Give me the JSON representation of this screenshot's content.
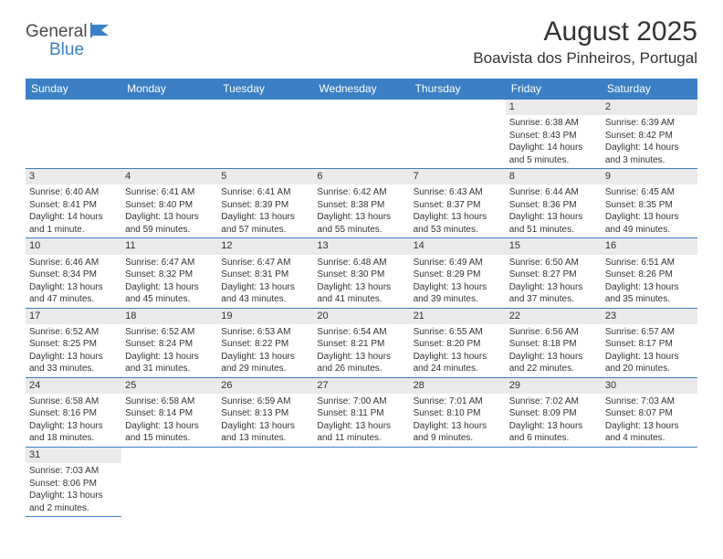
{
  "logo": {
    "part1": "General",
    "part2": "Blue"
  },
  "title": "August 2025",
  "location": "Boavista dos Pinheiros, Portugal",
  "header_bg": "#3b7fc4",
  "header_fg": "#ffffff",
  "daynum_bg": "#eaeaea",
  "border_color": "#3b7fc4",
  "weekdays": [
    "Sunday",
    "Monday",
    "Tuesday",
    "Wednesday",
    "Thursday",
    "Friday",
    "Saturday"
  ],
  "weeks": [
    [
      null,
      null,
      null,
      null,
      null,
      {
        "n": "1",
        "sunrise": "6:38 AM",
        "sunset": "8:43 PM",
        "daylight": "14 hours and 5 minutes."
      },
      {
        "n": "2",
        "sunrise": "6:39 AM",
        "sunset": "8:42 PM",
        "daylight": "14 hours and 3 minutes."
      }
    ],
    [
      {
        "n": "3",
        "sunrise": "6:40 AM",
        "sunset": "8:41 PM",
        "daylight": "14 hours and 1 minute."
      },
      {
        "n": "4",
        "sunrise": "6:41 AM",
        "sunset": "8:40 PM",
        "daylight": "13 hours and 59 minutes."
      },
      {
        "n": "5",
        "sunrise": "6:41 AM",
        "sunset": "8:39 PM",
        "daylight": "13 hours and 57 minutes."
      },
      {
        "n": "6",
        "sunrise": "6:42 AM",
        "sunset": "8:38 PM",
        "daylight": "13 hours and 55 minutes."
      },
      {
        "n": "7",
        "sunrise": "6:43 AM",
        "sunset": "8:37 PM",
        "daylight": "13 hours and 53 minutes."
      },
      {
        "n": "8",
        "sunrise": "6:44 AM",
        "sunset": "8:36 PM",
        "daylight": "13 hours and 51 minutes."
      },
      {
        "n": "9",
        "sunrise": "6:45 AM",
        "sunset": "8:35 PM",
        "daylight": "13 hours and 49 minutes."
      }
    ],
    [
      {
        "n": "10",
        "sunrise": "6:46 AM",
        "sunset": "8:34 PM",
        "daylight": "13 hours and 47 minutes."
      },
      {
        "n": "11",
        "sunrise": "6:47 AM",
        "sunset": "8:32 PM",
        "daylight": "13 hours and 45 minutes."
      },
      {
        "n": "12",
        "sunrise": "6:47 AM",
        "sunset": "8:31 PM",
        "daylight": "13 hours and 43 minutes."
      },
      {
        "n": "13",
        "sunrise": "6:48 AM",
        "sunset": "8:30 PM",
        "daylight": "13 hours and 41 minutes."
      },
      {
        "n": "14",
        "sunrise": "6:49 AM",
        "sunset": "8:29 PM",
        "daylight": "13 hours and 39 minutes."
      },
      {
        "n": "15",
        "sunrise": "6:50 AM",
        "sunset": "8:27 PM",
        "daylight": "13 hours and 37 minutes."
      },
      {
        "n": "16",
        "sunrise": "6:51 AM",
        "sunset": "8:26 PM",
        "daylight": "13 hours and 35 minutes."
      }
    ],
    [
      {
        "n": "17",
        "sunrise": "6:52 AM",
        "sunset": "8:25 PM",
        "daylight": "13 hours and 33 minutes."
      },
      {
        "n": "18",
        "sunrise": "6:52 AM",
        "sunset": "8:24 PM",
        "daylight": "13 hours and 31 minutes."
      },
      {
        "n": "19",
        "sunrise": "6:53 AM",
        "sunset": "8:22 PM",
        "daylight": "13 hours and 29 minutes."
      },
      {
        "n": "20",
        "sunrise": "6:54 AM",
        "sunset": "8:21 PM",
        "daylight": "13 hours and 26 minutes."
      },
      {
        "n": "21",
        "sunrise": "6:55 AM",
        "sunset": "8:20 PM",
        "daylight": "13 hours and 24 minutes."
      },
      {
        "n": "22",
        "sunrise": "6:56 AM",
        "sunset": "8:18 PM",
        "daylight": "13 hours and 22 minutes."
      },
      {
        "n": "23",
        "sunrise": "6:57 AM",
        "sunset": "8:17 PM",
        "daylight": "13 hours and 20 minutes."
      }
    ],
    [
      {
        "n": "24",
        "sunrise": "6:58 AM",
        "sunset": "8:16 PM",
        "daylight": "13 hours and 18 minutes."
      },
      {
        "n": "25",
        "sunrise": "6:58 AM",
        "sunset": "8:14 PM",
        "daylight": "13 hours and 15 minutes."
      },
      {
        "n": "26",
        "sunrise": "6:59 AM",
        "sunset": "8:13 PM",
        "daylight": "13 hours and 13 minutes."
      },
      {
        "n": "27",
        "sunrise": "7:00 AM",
        "sunset": "8:11 PM",
        "daylight": "13 hours and 11 minutes."
      },
      {
        "n": "28",
        "sunrise": "7:01 AM",
        "sunset": "8:10 PM",
        "daylight": "13 hours and 9 minutes."
      },
      {
        "n": "29",
        "sunrise": "7:02 AM",
        "sunset": "8:09 PM",
        "daylight": "13 hours and 6 minutes."
      },
      {
        "n": "30",
        "sunrise": "7:03 AM",
        "sunset": "8:07 PM",
        "daylight": "13 hours and 4 minutes."
      }
    ],
    [
      {
        "n": "31",
        "sunrise": "7:03 AM",
        "sunset": "8:06 PM",
        "daylight": "13 hours and 2 minutes."
      },
      null,
      null,
      null,
      null,
      null,
      null
    ]
  ]
}
